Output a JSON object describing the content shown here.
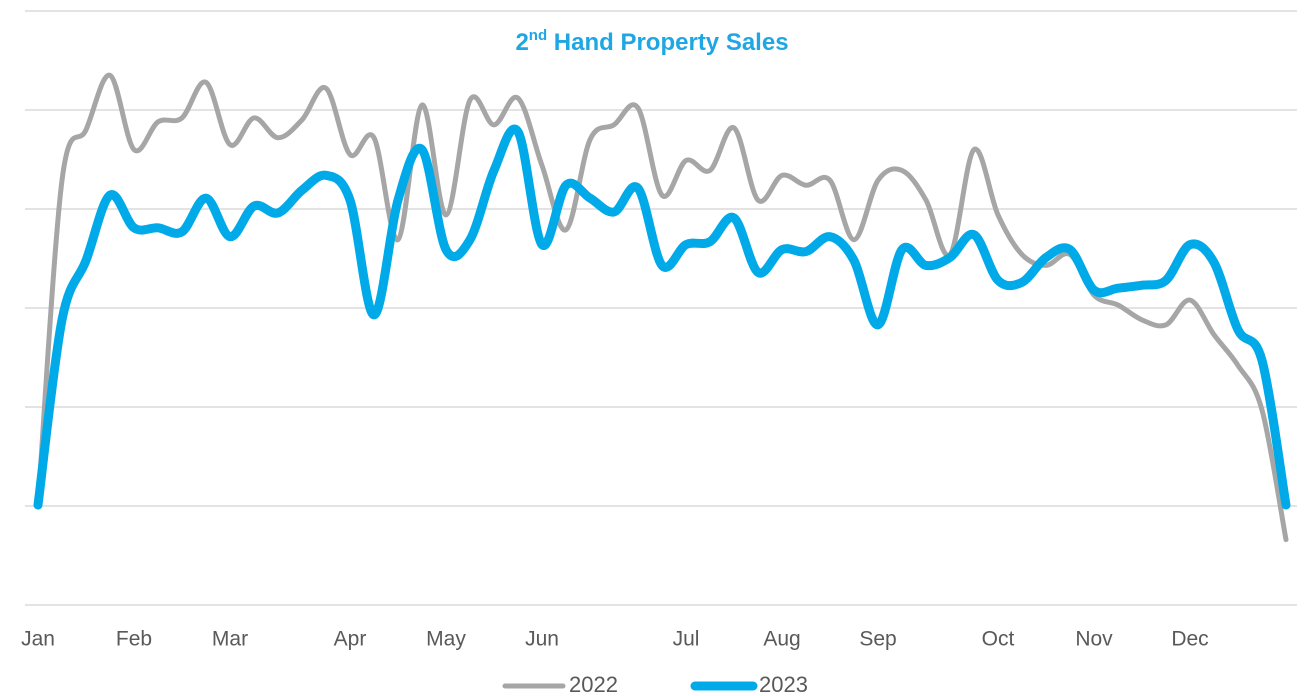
{
  "chart_data": {
    "type": "line",
    "title": "2nd Hand Property Sales",
    "categories": [
      "Jan",
      null,
      null,
      null,
      "Feb",
      null,
      null,
      null,
      "Mar",
      null,
      null,
      null,
      null,
      "Apr",
      null,
      null,
      null,
      "May",
      null,
      null,
      null,
      "Jun",
      null,
      null,
      null,
      null,
      null,
      "Jul",
      null,
      null,
      null,
      "Aug",
      null,
      null,
      null,
      "Sep",
      null,
      null,
      null,
      null,
      "Oct",
      null,
      null,
      null,
      "Nov",
      null,
      null,
      null,
      "Dec",
      null,
      null,
      null,
      null
    ],
    "series": [
      {
        "name": "2022",
        "color": "#a6a6a6",
        "values": [
          1.01,
          4.29,
          4.8,
          5.35,
          4.6,
          4.88,
          4.92,
          5.28,
          4.65,
          4.92,
          4.72,
          4.9,
          5.22,
          4.55,
          4.72,
          3.69,
          5.05,
          3.94,
          5.1,
          4.85,
          5.12,
          4.44,
          3.79,
          4.7,
          4.85,
          5.02,
          4.14,
          4.49,
          4.39,
          4.82,
          4.09,
          4.34,
          4.24,
          4.29,
          3.69,
          4.29,
          4.39,
          4.09,
          3.54,
          4.6,
          3.94,
          3.54,
          3.43,
          3.54,
          3.13,
          3.03,
          2.88,
          2.83,
          3.08,
          2.73,
          2.42,
          1.97,
          0.66
        ]
      },
      {
        "name": "2023",
        "color": "#00aae8",
        "values": [
          1.01,
          2.88,
          3.48,
          4.14,
          3.81,
          3.81,
          3.77,
          4.11,
          3.72,
          4.03,
          3.96,
          4.19,
          4.34,
          4.09,
          2.93,
          4.09,
          4.6,
          3.59,
          3.69,
          4.39,
          4.78,
          3.64,
          4.24,
          4.11,
          3.97,
          4.21,
          3.43,
          3.64,
          3.67,
          3.91,
          3.36,
          3.59,
          3.57,
          3.72,
          3.48,
          2.83,
          3.59,
          3.43,
          3.51,
          3.74,
          3.28,
          3.26,
          3.51,
          3.59,
          3.18,
          3.2,
          3.23,
          3.28,
          3.64,
          3.46,
          2.78,
          2.47,
          1.01
        ]
      }
    ],
    "ylim": [
      0,
      6
    ],
    "yticks": [
      0,
      1,
      2,
      3,
      4,
      5,
      6
    ],
    "grid": true,
    "legend": "bottom"
  }
}
